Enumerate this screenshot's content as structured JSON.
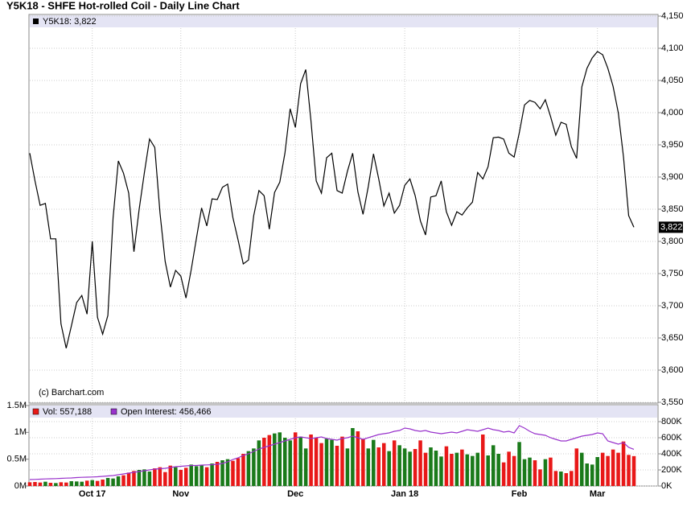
{
  "chart_data": [
    {
      "type": "line",
      "title": "Y5K18 - SHFE Hot-rolled Coil - Daily Line Chart",
      "watermark": "(c) Barchart.com",
      "last_label": "3,822",
      "categories": [
        null,
        null,
        null,
        null,
        null,
        null,
        null,
        null,
        null,
        null,
        null,
        null,
        "Oct 17",
        null,
        null,
        null,
        null,
        null,
        null,
        null,
        null,
        null,
        null,
        null,
        null,
        null,
        null,
        null,
        null,
        "Nov",
        null,
        null,
        null,
        null,
        null,
        null,
        null,
        null,
        null,
        null,
        null,
        null,
        null,
        null,
        null,
        null,
        null,
        null,
        null,
        null,
        null,
        "Dec",
        null,
        null,
        null,
        null,
        null,
        null,
        null,
        null,
        null,
        null,
        null,
        null,
        null,
        null,
        null,
        null,
        null,
        null,
        null,
        null,
        "Jan 18",
        null,
        null,
        null,
        null,
        null,
        null,
        null,
        null,
        null,
        null,
        null,
        null,
        null,
        null,
        null,
        null,
        null,
        null,
        null,
        null,
        null,
        "Feb",
        null,
        null,
        null,
        null,
        null,
        null,
        null,
        null,
        null,
        null,
        null,
        null,
        null,
        null,
        "Mar",
        null,
        null,
        null,
        null,
        null,
        null,
        null
      ],
      "series": [
        {
          "name": "Y5K18: 3,822",
          "color": "#000000",
          "values": [
            3937,
            3894,
            3856,
            3859,
            3804,
            3804,
            3672,
            3634,
            3669,
            3705,
            3716,
            3687,
            3800,
            3682,
            3656,
            3685,
            3837,
            3925,
            3906,
            3875,
            3784,
            3850,
            3906,
            3959,
            3946,
            3844,
            3769,
            3729,
            3755,
            3746,
            3712,
            3756,
            3805,
            3852,
            3824,
            3866,
            3865,
            3884,
            3889,
            3837,
            3802,
            3765,
            3771,
            3840,
            3879,
            3871,
            3819,
            3876,
            3892,
            3937,
            4006,
            3977,
            4045,
            4067,
            3987,
            3894,
            3875,
            3930,
            3937,
            3879,
            3875,
            3909,
            3937,
            3877,
            3842,
            3885,
            3936,
            3897,
            3855,
            3875,
            3844,
            3856,
            3887,
            3897,
            3871,
            3832,
            3810,
            3869,
            3871,
            3894,
            3846,
            3825,
            3846,
            3841,
            3852,
            3861,
            3907,
            3897,
            3916,
            3961,
            3962,
            3959,
            3937,
            3931,
            3969,
            4012,
            4019,
            4016,
            4006,
            4020,
            3994,
            3965,
            3985,
            3982,
            3947,
            3929,
            4040,
            4069,
            4085,
            4095,
            4090,
            4069,
            4041,
            4000,
            3931,
            3840,
            3822
          ]
        }
      ],
      "ylim": [
        3550,
        4150
      ],
      "yticks": [
        {
          "value": 3550,
          "label": "3,550"
        },
        {
          "value": 3600,
          "label": "3,600"
        },
        {
          "value": 3650,
          "label": "3,650"
        },
        {
          "value": 3700,
          "label": "3,700"
        },
        {
          "value": 3750,
          "label": "3,750"
        },
        {
          "value": 3800,
          "label": "3,800"
        },
        {
          "value": 3850,
          "label": "3,850"
        },
        {
          "value": 3900,
          "label": "3,900"
        },
        {
          "value": 3950,
          "label": "3,950"
        },
        {
          "value": 4000,
          "label": "4,000"
        },
        {
          "value": 4050,
          "label": "4,050"
        },
        {
          "value": 4100,
          "label": "4,100"
        },
        {
          "value": 4150,
          "label": "4,150"
        }
      ],
      "grid": true
    },
    {
      "type": "bar",
      "series": [
        {
          "name": "Vol: 557,188",
          "up_color": "#1a7a1a",
          "down_color": "#e81818",
          "values": [
            70000,
            75000,
            65000,
            80000,
            60000,
            55000,
            70000,
            65000,
            90000,
            85000,
            80000,
            100000,
            110000,
            95000,
            120000,
            150000,
            140000,
            180000,
            200000,
            250000,
            280000,
            300000,
            310000,
            270000,
            330000,
            350000,
            260000,
            380000,
            350000,
            300000,
            340000,
            400000,
            370000,
            390000,
            350000,
            420000,
            450000,
            480000,
            500000,
            470000,
            520000,
            600000,
            650000,
            700000,
            850000,
            900000,
            950000,
            980000,
            1000000,
            900000,
            850000,
            1000000,
            920000,
            700000,
            960000,
            900000,
            800000,
            880000,
            860000,
            750000,
            920000,
            700000,
            1080000,
            1020000,
            870000,
            700000,
            860000,
            720000,
            800000,
            650000,
            850000,
            760000,
            700000,
            640000,
            690000,
            850000,
            620000,
            720000,
            660000,
            550000,
            740000,
            600000,
            620000,
            680000,
            590000,
            560000,
            620000,
            960000,
            570000,
            760000,
            600000,
            440000,
            640000,
            560000,
            820000,
            500000,
            530000,
            480000,
            310000,
            500000,
            530000,
            280000,
            270000,
            240000,
            280000,
            700000,
            620000,
            420000,
            400000,
            540000,
            620000,
            560000,
            680000,
            620000,
            830000,
            580000,
            557188
          ]
        },
        {
          "name": "Open Interest: 456,466",
          "color": "#9933cc",
          "axis": "y2",
          "values": [
            80000,
            82000,
            85000,
            88000,
            90000,
            92000,
            95000,
            98000,
            100000,
            105000,
            108000,
            110000,
            112000,
            115000,
            120000,
            125000,
            130000,
            140000,
            150000,
            160000,
            170000,
            180000,
            190000,
            200000,
            210000,
            215000,
            220000,
            230000,
            240000,
            245000,
            250000,
            255000,
            255000,
            260000,
            262000,
            265000,
            270000,
            280000,
            300000,
            330000,
            350000,
            380000,
            400000,
            430000,
            460000,
            480000,
            500000,
            520000,
            540000,
            560000,
            580000,
            600000,
            610000,
            600000,
            590000,
            600000,
            610000,
            590000,
            580000,
            570000,
            590000,
            600000,
            620000,
            600000,
            580000,
            600000,
            620000,
            640000,
            650000,
            660000,
            680000,
            690000,
            720000,
            710000,
            690000,
            680000,
            690000,
            670000,
            660000,
            650000,
            660000,
            670000,
            660000,
            680000,
            700000,
            690000,
            680000,
            700000,
            720000,
            700000,
            690000,
            670000,
            680000,
            660000,
            750000,
            720000,
            680000,
            650000,
            640000,
            630000,
            600000,
            580000,
            560000,
            560000,
            580000,
            600000,
            620000,
            630000,
            640000,
            660000,
            650000,
            560000,
            540000,
            520000,
            540000,
            480000,
            456466
          ]
        }
      ],
      "ylim": [
        0,
        1500000
      ],
      "yticks": [
        {
          "value": 0,
          "label": "0M"
        },
        {
          "value": 500000,
          "label": "0.5M"
        },
        {
          "value": 1000000,
          "label": "1M"
        },
        {
          "value": 1500000,
          "label": "1.5M"
        }
      ],
      "y2lim": [
        0,
        1000000
      ],
      "y2ticks": [
        {
          "value": 0,
          "label": "0K"
        },
        {
          "value": 200000,
          "label": "200K"
        },
        {
          "value": 400000,
          "label": "400K"
        },
        {
          "value": 600000,
          "label": "600K"
        },
        {
          "value": 800000,
          "label": "800K"
        }
      ],
      "grid": true
    }
  ]
}
